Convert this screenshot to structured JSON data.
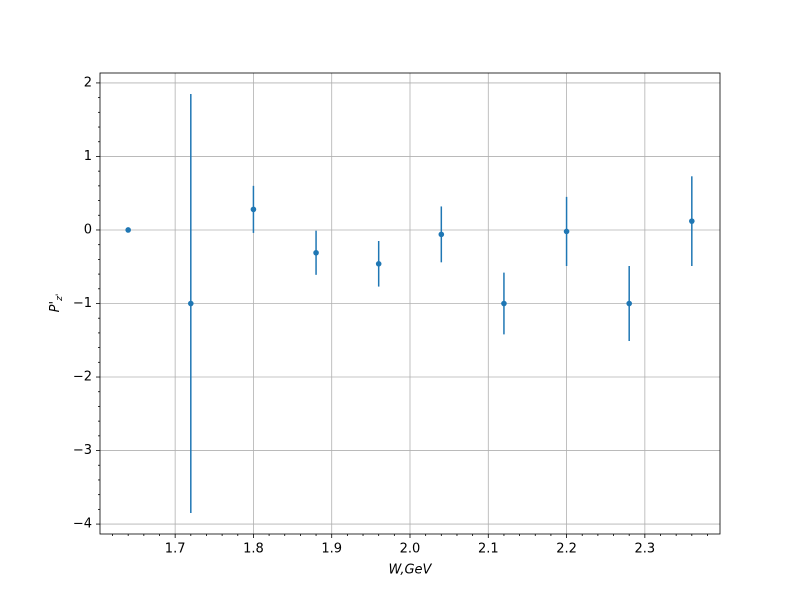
{
  "chart_data": {
    "type": "errorbar",
    "xlabel": "W,GeV",
    "ylabel": "P'",
    "ylabel_subscript": "z'",
    "x": [
      1.64,
      1.72,
      1.8,
      1.88,
      1.96,
      2.04,
      2.12,
      2.2,
      2.28,
      2.36
    ],
    "values": [
      0,
      -1,
      0.28,
      -0.31,
      -0.46,
      -0.06,
      -1,
      -0.02,
      -1,
      0.12
    ],
    "errors": [
      0,
      2.85,
      0.32,
      0.3,
      0.31,
      0.38,
      0.42,
      0.47,
      0.51,
      0.61
    ],
    "color": "#1f77b4",
    "xlim": [
      1.604,
      2.396
    ],
    "ylim": [
      -4.135,
      2.135
    ],
    "xticks": [
      1.7,
      1.8,
      1.9,
      {
        "value": 2,
        "label": "2.0"
      },
      2.1,
      2.2,
      2.3
    ],
    "yticks": [
      {
        "value": -4,
        "label": "−4"
      },
      {
        "value": -3,
        "label": "−3"
      },
      {
        "value": -2,
        "label": "−2"
      },
      {
        "value": -1,
        "label": "−1"
      },
      0,
      1,
      2
    ],
    "xminorticks": [
      1.62,
      1.64,
      1.66,
      1.68,
      1.72,
      1.74,
      1.76,
      1.78,
      1.82,
      1.84,
      1.86,
      1.88,
      1.92,
      1.94,
      1.96,
      1.98,
      2.02,
      2.04,
      2.06,
      2.08,
      2.12,
      2.14,
      2.16,
      2.18,
      2.22,
      2.24,
      2.26,
      2.28,
      2.32,
      2.34,
      2.36,
      2.38
    ],
    "yminorticks": [
      -3.8,
      -3.6,
      -3.4,
      -3.2,
      -2.8,
      -2.6,
      -2.4,
      -2.2,
      -1.8,
      -1.6,
      -1.4,
      -1.2,
      -0.8,
      -0.6,
      -0.4,
      -0.2,
      0.2,
      0.4,
      0.6,
      0.8,
      1.2,
      1.4,
      1.6,
      1.8
    ],
    "grid": true
  }
}
